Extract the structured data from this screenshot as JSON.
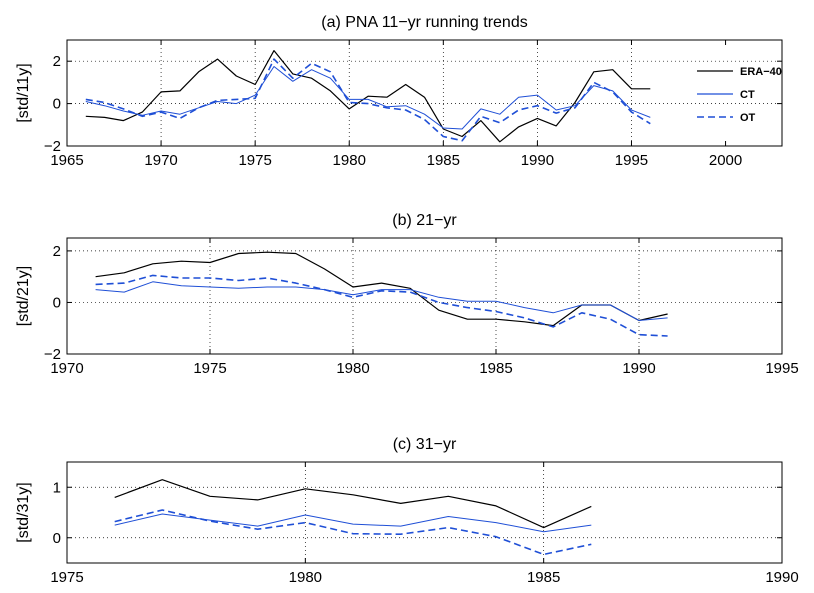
{
  "chart_data": [
    {
      "type": "line",
      "title": "(a) PNA 11−yr running trends",
      "ylabel": "[std/11y]",
      "xlabel": "",
      "xlim": [
        1965,
        2003
      ],
      "ylim": [
        -2,
        3
      ],
      "xticks": [
        1965,
        1970,
        1975,
        1980,
        1985,
        1990,
        1995,
        2000
      ],
      "xtick_labels": [
        "1965",
        "1970",
        "1975",
        "1980",
        "1985",
        "1990",
        "1995",
        "2000"
      ],
      "yticks": [
        -2,
        0,
        2
      ],
      "ytick_labels": [
        "−2",
        "0",
        "2"
      ],
      "grid": true,
      "legend_position": "right",
      "x": [
        1966,
        1967,
        1968,
        1969,
        1970,
        1971,
        1972,
        1973,
        1974,
        1975,
        1976,
        1977,
        1978,
        1979,
        1980,
        1981,
        1982,
        1983,
        1984,
        1985,
        1986,
        1987,
        1988,
        1989,
        1990,
        1991,
        1992,
        1993,
        1994,
        1995,
        1996
      ],
      "series": [
        {
          "name": "ERA−40",
          "color": "#000000",
          "dash": "solid",
          "values": [
            -0.6,
            -0.65,
            -0.8,
            -0.4,
            0.55,
            0.6,
            1.5,
            2.1,
            1.3,
            0.9,
            2.5,
            1.4,
            1.2,
            0.6,
            -0.25,
            0.35,
            0.3,
            0.9,
            0.3,
            -1.2,
            -1.55,
            -0.8,
            -1.8,
            -1.1,
            -0.7,
            -1.05,
            0.05,
            1.5,
            1.6,
            0.7,
            0.7
          ]
        },
        {
          "name": "CT",
          "color": "#1f4fd6",
          "dash": "solid",
          "values": [
            0.1,
            -0.1,
            -0.35,
            -0.55,
            -0.35,
            -0.5,
            -0.2,
            0.1,
            0.0,
            0.4,
            1.75,
            1.05,
            1.6,
            1.2,
            0.2,
            0.2,
            -0.15,
            -0.1,
            -0.5,
            -1.15,
            -1.2,
            -0.25,
            -0.5,
            0.3,
            0.4,
            -0.3,
            -0.1,
            0.85,
            0.6,
            -0.3,
            -0.65
          ]
        },
        {
          "name": "OT",
          "color": "#1f4fd6",
          "dash": "dashed",
          "values": [
            0.2,
            0.05,
            -0.25,
            -0.6,
            -0.4,
            -0.7,
            -0.2,
            0.15,
            0.2,
            0.25,
            2.1,
            1.2,
            1.9,
            1.5,
            0.05,
            0.0,
            -0.2,
            -0.3,
            -0.75,
            -1.55,
            -1.75,
            -0.6,
            -0.9,
            -0.3,
            -0.1,
            -0.45,
            -0.2,
            1.0,
            0.55,
            -0.4,
            -0.95
          ]
        }
      ]
    },
    {
      "type": "line",
      "title": "(b) 21−yr",
      "ylabel": "[std/21y]",
      "xlabel": "",
      "xlim": [
        1970,
        1995
      ],
      "ylim": [
        -2,
        2.5
      ],
      "xticks": [
        1970,
        1975,
        1980,
        1985,
        1990,
        1995
      ],
      "xtick_labels": [
        "1970",
        "1975",
        "1980",
        "1985",
        "1990",
        "1995"
      ],
      "yticks": [
        -2,
        0,
        2
      ],
      "ytick_labels": [
        "−2",
        "0",
        "2"
      ],
      "grid": true,
      "x": [
        1971,
        1972,
        1973,
        1974,
        1975,
        1976,
        1977,
        1978,
        1979,
        1980,
        1981,
        1982,
        1983,
        1984,
        1985,
        1986,
        1987,
        1988,
        1989,
        1990,
        1991
      ],
      "series": [
        {
          "color": "#000000",
          "dash": "solid",
          "values": [
            1.0,
            1.15,
            1.5,
            1.6,
            1.55,
            1.9,
            1.95,
            1.9,
            1.3,
            0.6,
            0.75,
            0.55,
            -0.3,
            -0.65,
            -0.65,
            -0.75,
            -0.9,
            -0.1,
            -0.1,
            -0.7,
            -0.45
          ]
        },
        {
          "color": "#1f4fd6",
          "dash": "solid",
          "values": [
            0.5,
            0.4,
            0.8,
            0.65,
            0.6,
            0.55,
            0.6,
            0.6,
            0.5,
            0.3,
            0.5,
            0.5,
            0.2,
            0.05,
            0.05,
            -0.2,
            -0.4,
            -0.1,
            -0.1,
            -0.7,
            -0.6
          ]
        },
        {
          "color": "#1f4fd6",
          "dash": "dashed",
          "values": [
            0.7,
            0.75,
            1.05,
            0.95,
            0.95,
            0.85,
            0.95,
            0.75,
            0.5,
            0.2,
            0.45,
            0.4,
            0.0,
            -0.2,
            -0.35,
            -0.6,
            -0.95,
            -0.4,
            -0.65,
            -1.25,
            -1.3
          ]
        }
      ]
    },
    {
      "type": "line",
      "title": "(c) 31−yr",
      "ylabel": "[std/31y]",
      "xlabel": "",
      "xlim": [
        1975,
        1990
      ],
      "ylim": [
        -0.5,
        1.5
      ],
      "xticks": [
        1975,
        1980,
        1985,
        1990
      ],
      "xtick_labels": [
        "1975",
        "1980",
        "1985",
        "1990"
      ],
      "yticks": [
        0,
        1
      ],
      "ytick_labels": [
        "0",
        "1"
      ],
      "grid": true,
      "x": [
        1976,
        1977,
        1978,
        1979,
        1980,
        1981,
        1982,
        1983,
        1984,
        1985,
        1986
      ],
      "series": [
        {
          "color": "#000000",
          "dash": "solid",
          "values": [
            0.8,
            1.15,
            0.82,
            0.75,
            0.97,
            0.85,
            0.68,
            0.82,
            0.63,
            0.2,
            0.62
          ]
        },
        {
          "color": "#1f4fd6",
          "dash": "solid",
          "values": [
            0.25,
            0.47,
            0.35,
            0.23,
            0.45,
            0.27,
            0.23,
            0.42,
            0.3,
            0.12,
            0.25
          ]
        },
        {
          "color": "#1f4fd6",
          "dash": "dashed",
          "values": [
            0.32,
            0.55,
            0.33,
            0.17,
            0.3,
            0.08,
            0.07,
            0.2,
            0.02,
            -0.33,
            -0.13
          ]
        }
      ]
    }
  ]
}
